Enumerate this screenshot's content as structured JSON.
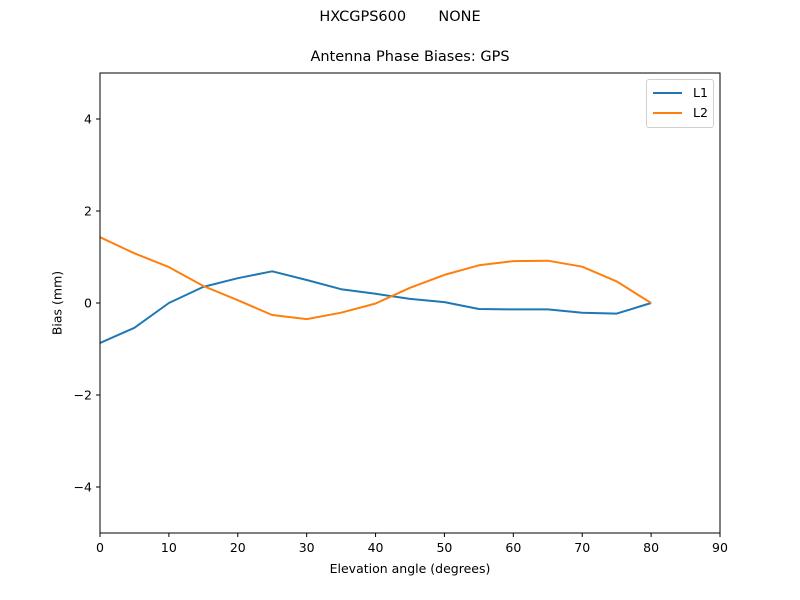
{
  "figure": {
    "suptitle": "HXCGPS600       NONE",
    "title": "Antenna Phase Biases: GPS",
    "xlabel": "Elevation angle (degrees)",
    "ylabel": "Bias (mm)"
  },
  "legend": {
    "items": [
      {
        "label": "L1",
        "color": "#1f77b4"
      },
      {
        "label": "L2",
        "color": "#ff7f0e"
      }
    ]
  },
  "chart_data": {
    "type": "line",
    "title": "Antenna Phase Biases: GPS",
    "suptitle": "HXCGPS600       NONE",
    "xlabel": "Elevation angle (degrees)",
    "ylabel": "Bias (mm)",
    "xlim": [
      0,
      90
    ],
    "ylim": [
      -5,
      5
    ],
    "xticks": [
      0,
      10,
      20,
      30,
      40,
      50,
      60,
      70,
      80,
      90
    ],
    "yticks": [
      -4,
      -2,
      0,
      2,
      4
    ],
    "ytick_labels": [
      "−4",
      "−2",
      "0",
      "2",
      "4"
    ],
    "grid": false,
    "legend_position": "upper right",
    "x": [
      0,
      5,
      10,
      15,
      20,
      25,
      30,
      35,
      40,
      45,
      50,
      55,
      60,
      65,
      70,
      75,
      80
    ],
    "series": [
      {
        "name": "L1",
        "color": "#1f77b4",
        "values": [
          -0.87,
          -0.54,
          0.0,
          0.35,
          0.54,
          0.69,
          0.5,
          0.3,
          0.2,
          0.09,
          0.02,
          -0.13,
          -0.14,
          -0.14,
          -0.21,
          -0.23,
          0.0
        ]
      },
      {
        "name": "L2",
        "color": "#ff7f0e",
        "values": [
          1.43,
          1.08,
          0.78,
          0.37,
          0.06,
          -0.26,
          -0.35,
          -0.21,
          -0.01,
          0.33,
          0.61,
          0.82,
          0.91,
          0.92,
          0.79,
          0.47,
          0.0
        ]
      }
    ]
  }
}
